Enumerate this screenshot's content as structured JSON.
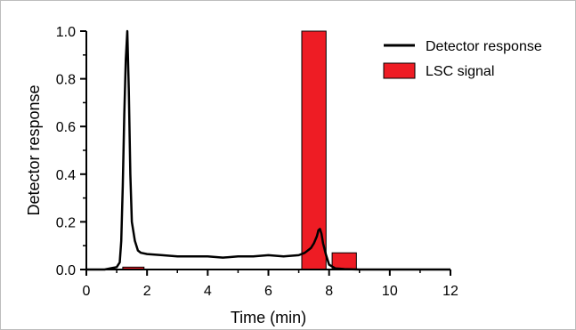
{
  "chart_data": {
    "type": "line",
    "xlabel": "Time (min)",
    "ylabel": "Detector response",
    "xlim": [
      0,
      12
    ],
    "ylim": [
      0,
      1.0
    ],
    "x_ticks": [
      "0",
      "2",
      "4",
      "6",
      "8",
      "10",
      "12"
    ],
    "y_ticks": [
      "0.0",
      "0.2",
      "0.4",
      "0.6",
      "0.8",
      "1.0"
    ],
    "grid": false,
    "legend_position": "top-right",
    "series": [
      {
        "name": "Detector response",
        "kind": "line",
        "color": "#000000",
        "x": [
          0,
          0.6,
          1.0,
          1.1,
          1.15,
          1.2,
          1.25,
          1.3,
          1.35,
          1.4,
          1.45,
          1.5,
          1.6,
          1.7,
          1.8,
          2.0,
          2.5,
          3.0,
          3.5,
          4.0,
          4.5,
          5.0,
          5.5,
          6.0,
          6.5,
          7.0,
          7.2,
          7.4,
          7.5,
          7.6,
          7.65,
          7.7,
          7.75,
          7.8,
          7.9,
          8.0,
          8.2,
          8.5,
          9.0,
          10.0,
          11.0,
          12.0
        ],
        "y": [
          0.0,
          0.0,
          0.01,
          0.03,
          0.12,
          0.35,
          0.65,
          0.88,
          1.0,
          0.75,
          0.4,
          0.2,
          0.12,
          0.08,
          0.07,
          0.065,
          0.06,
          0.055,
          0.055,
          0.055,
          0.05,
          0.055,
          0.055,
          0.06,
          0.055,
          0.06,
          0.07,
          0.09,
          0.11,
          0.14,
          0.165,
          0.17,
          0.15,
          0.11,
          0.06,
          0.02,
          0.005,
          0.002,
          0.0,
          0.0,
          0.0,
          0.0
        ]
      },
      {
        "name": "LSC signal",
        "kind": "bar",
        "color": "#ee1c24",
        "bins": [
          {
            "x0": 1.2,
            "x1": 1.9,
            "value": 0.01
          },
          {
            "x0": 7.1,
            "x1": 7.9,
            "value": 1.0
          },
          {
            "x0": 8.1,
            "x1": 8.9,
            "value": 0.07
          }
        ]
      }
    ]
  }
}
